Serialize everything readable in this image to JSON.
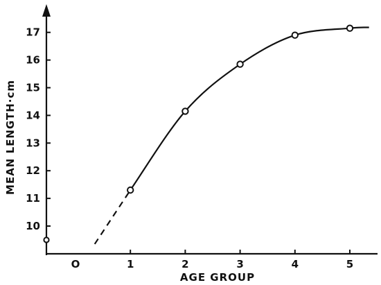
{
  "chart_data": {
    "type": "line",
    "xlabel": "AGE GROUP",
    "ylabel": "MEAN LENGTH·cm",
    "x_ticks": [
      "O",
      "1",
      "2",
      "3",
      "4",
      "5"
    ],
    "y_ticks": [
      "10",
      "11",
      "12",
      "13",
      "14",
      "15",
      "16",
      "17"
    ],
    "xlim": [
      -0.55,
      5.5
    ],
    "ylim": [
      9.2,
      17.8
    ],
    "series": [
      {
        "values": [
          {
            "x": 1,
            "y": 11.3
          },
          {
            "x": 2,
            "y": 14.15
          },
          {
            "x": 3,
            "y": 15.85
          },
          {
            "x": 4,
            "y": 16.9
          },
          {
            "x": 5,
            "y": 17.15
          }
        ]
      }
    ],
    "extrapolation": {
      "from": {
        "x": 0.35,
        "y": 9.35
      },
      "to": {
        "x": 1,
        "y": 11.3
      },
      "style": "dashed"
    },
    "y_axis_markers": [
      {
        "y": 9.5
      }
    ],
    "grid": false,
    "curve_end_x": 5.35
  }
}
